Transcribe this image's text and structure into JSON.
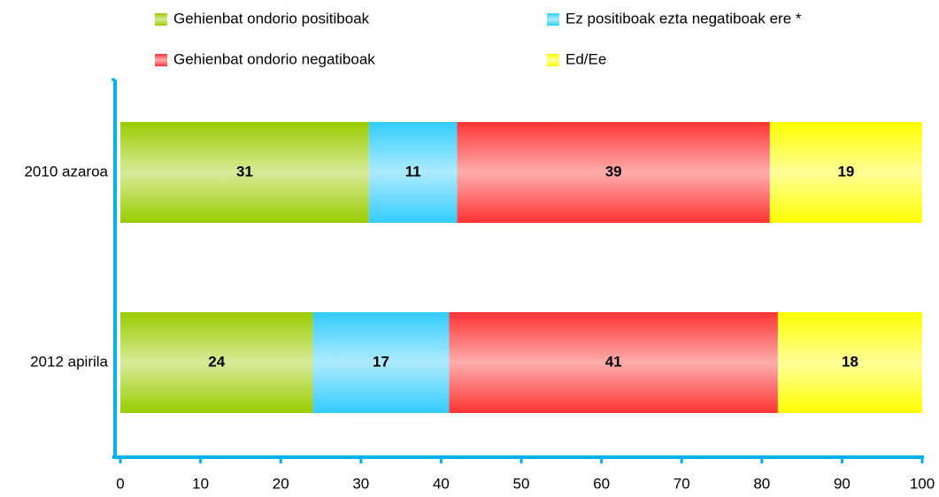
{
  "chart_data": {
    "type": "stacked_bar_horizontal",
    "categories": [
      "2010 azaroa",
      "2012 apirila"
    ],
    "series": [
      {
        "name": "Gehienbat ondorio positiboak",
        "color": "#99cc00",
        "values": [
          31,
          24
        ]
      },
      {
        "name": "Ez positiboak ezta negatiboak ere *",
        "color": "#33ccff",
        "values": [
          11,
          17
        ]
      },
      {
        "name": "Gehienbat ondorio negatiboak",
        "color": "#ff3333",
        "values": [
          39,
          41
        ]
      },
      {
        "name": "Ed/Ee",
        "color": "#ffff00",
        "values": [
          19,
          18
        ]
      }
    ],
    "xlim": [
      0,
      100
    ],
    "xticks": [
      0,
      10,
      20,
      30,
      40,
      50,
      60,
      70,
      80,
      90,
      100
    ],
    "axis_color": "#00b0f0"
  }
}
